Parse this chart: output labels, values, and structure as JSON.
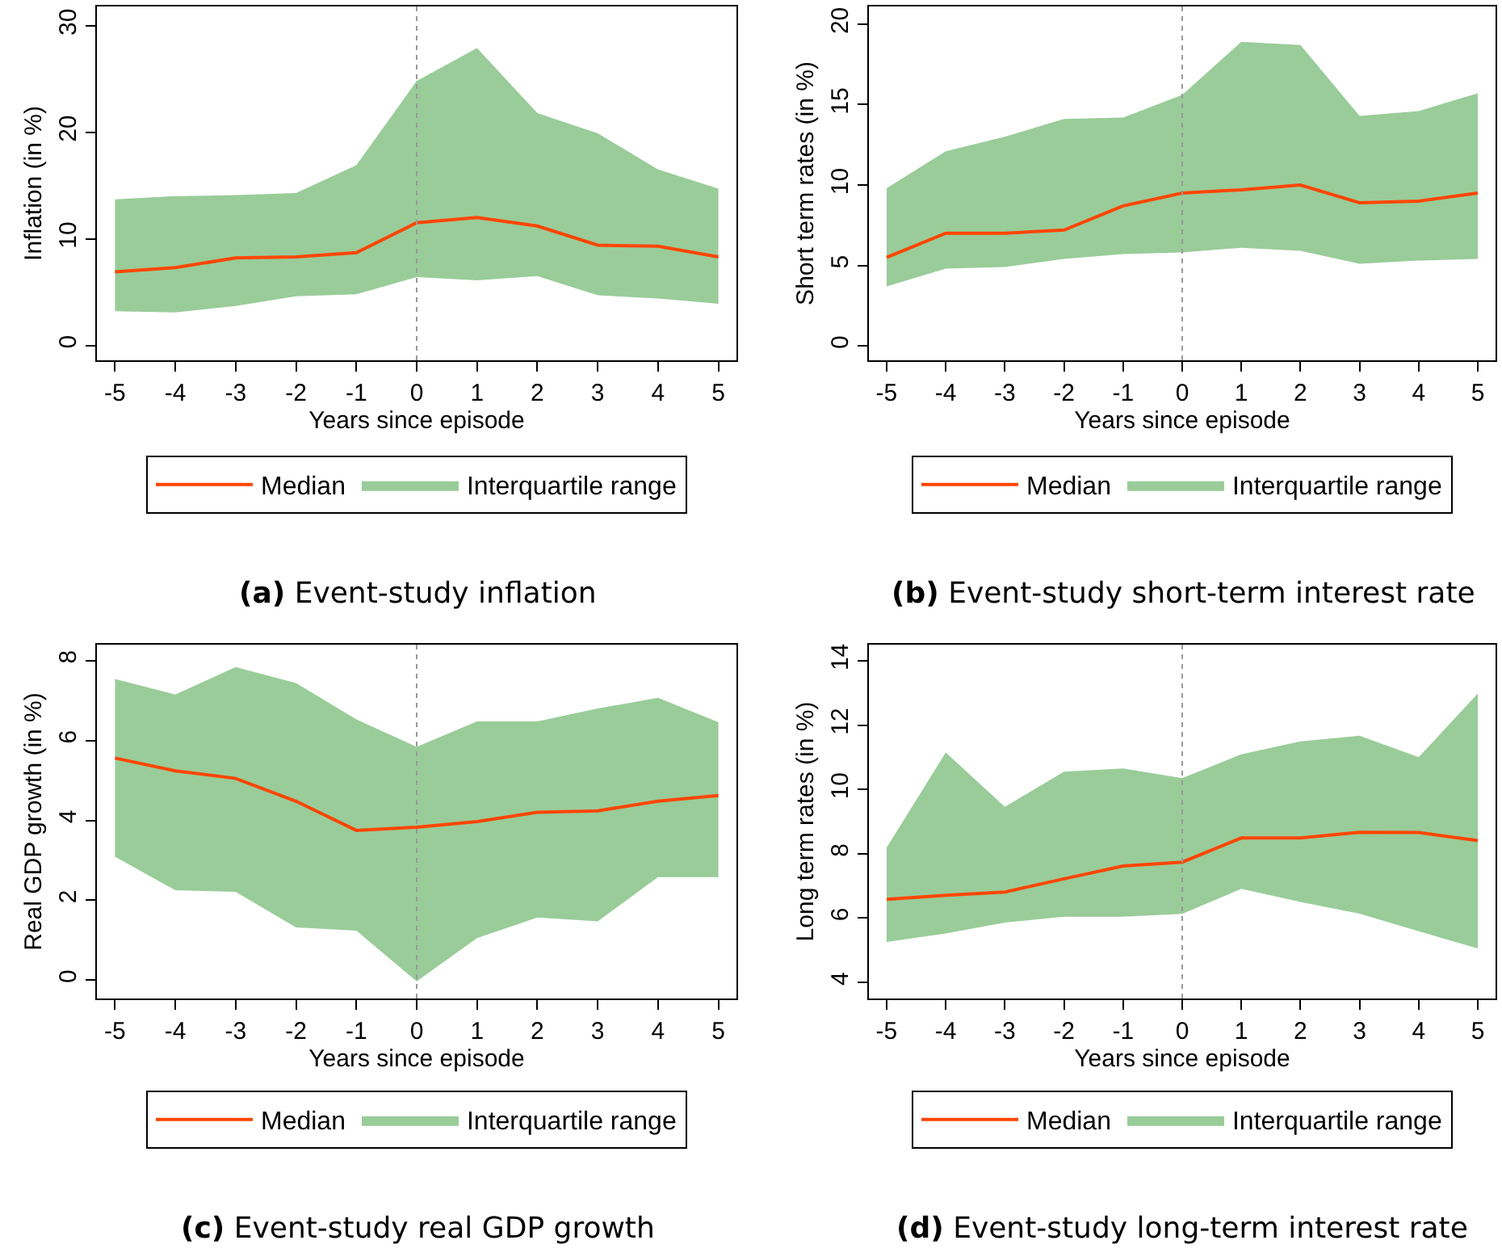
{
  "chart_data": [
    {
      "type": "line",
      "title": "(a) Event-study inflation",
      "xlabel": "Years since episode",
      "ylabel": "Inflation (in %)",
      "x": [
        -5,
        -4,
        -3,
        -2,
        -1,
        0,
        1,
        2,
        3,
        4,
        5
      ],
      "xlim": [
        -5.3,
        5.3
      ],
      "xticks": [
        -5,
        -4,
        -3,
        -2,
        -1,
        0,
        1,
        2,
        3,
        4,
        5
      ],
      "ylim": [
        -1.4,
        31.8
      ],
      "yticks": [
        0,
        10,
        20,
        30
      ],
      "legend": "bottom",
      "ref_lines": [
        {
          "axis": "x",
          "value": 0,
          "color": "#999999",
          "line_style": "dotted"
        }
      ],
      "series": [
        {
          "name": "Median",
          "color": "#ff4500",
          "values": [
            6.9,
            7.3,
            8.2,
            8.3,
            8.7,
            11.5,
            12.0,
            11.2,
            9.4,
            9.3,
            8.3
          ],
          "lower": [
            3.2,
            3.1,
            3.7,
            4.6,
            4.8,
            6.4,
            6.1,
            6.5,
            4.7,
            4.4,
            3.9
          ],
          "upper": [
            13.7,
            14.0,
            14.1,
            14.3,
            16.9,
            24.8,
            27.9,
            21.8,
            19.9,
            16.5,
            14.7
          ]
        },
        {
          "name": "Interquartile range",
          "type": "area",
          "color": "#99cc99",
          "values": [
            null,
            null,
            null,
            null,
            null,
            null,
            null,
            null,
            null,
            null,
            null
          ]
        }
      ]
    },
    {
      "type": "line",
      "title": "(b) Event-study short-term interest rate",
      "xlabel": "Years since episode",
      "ylabel": "Short term rates (in %)",
      "x": [
        -5,
        -4,
        -3,
        -2,
        -1,
        0,
        1,
        2,
        3,
        4,
        5
      ],
      "xlim": [
        -5.3,
        5.3
      ],
      "xticks": [
        -5,
        -4,
        -3,
        -2,
        -1,
        0,
        1,
        2,
        3,
        4,
        5
      ],
      "ylim": [
        -0.9,
        21.1
      ],
      "yticks": [
        0,
        5,
        10,
        15,
        20
      ],
      "legend": "bottom",
      "ref_lines": [
        {
          "axis": "x",
          "value": 0,
          "color": "#999999",
          "line_style": "dotted"
        }
      ],
      "series": [
        {
          "name": "Median",
          "color": "#ff4500",
          "values": [
            5.5,
            7.0,
            7.0,
            7.2,
            8.7,
            9.5,
            9.7,
            10.0,
            8.9,
            9.0,
            9.5
          ],
          "lower": [
            3.7,
            4.8,
            4.9,
            5.4,
            5.7,
            5.8,
            6.1,
            5.9,
            5.1,
            5.3,
            5.4
          ],
          "upper": [
            9.8,
            12.1,
            13.0,
            14.1,
            14.2,
            15.6,
            18.9,
            18.7,
            14.3,
            14.6,
            15.7
          ]
        },
        {
          "name": "Interquartile range",
          "type": "area",
          "color": "#99cc99",
          "values": [
            null,
            null,
            null,
            null,
            null,
            null,
            null,
            null,
            null,
            null,
            null
          ]
        }
      ]
    },
    {
      "type": "line",
      "title": "(c) Event-study real GDP growth",
      "xlabel": "Years since episode",
      "ylabel": "Real GDP growth (in %)",
      "x": [
        -5,
        -4,
        -3,
        -2,
        -1,
        0,
        1,
        2,
        3,
        4,
        5
      ],
      "xlim": [
        -5.3,
        5.3
      ],
      "xticks": [
        -5,
        -4,
        -3,
        -2,
        -1,
        0,
        1,
        2,
        3,
        4,
        5
      ],
      "ylim": [
        -0.46,
        8.4
      ],
      "yticks": [
        0,
        2,
        4,
        6,
        8
      ],
      "legend": "bottom",
      "ref_lines": [
        {
          "axis": "x",
          "value": 0,
          "color": "#999999",
          "line_style": "dotted"
        }
      ],
      "series": [
        {
          "name": "Median",
          "color": "#ff4500",
          "values": [
            5.56,
            5.24,
            5.05,
            4.48,
            3.75,
            3.83,
            3.97,
            4.2,
            4.24,
            4.48,
            4.62
          ],
          "lower": [
            3.09,
            2.25,
            2.21,
            1.32,
            1.24,
            -0.03,
            1.05,
            1.57,
            1.47,
            2.58,
            2.58
          ],
          "upper": [
            7.54,
            7.15,
            7.84,
            7.44,
            6.53,
            5.84,
            6.48,
            6.48,
            6.8,
            7.07,
            6.46
          ]
        },
        {
          "name": "Interquartile range",
          "type": "area",
          "color": "#99cc99",
          "values": [
            null,
            null,
            null,
            null,
            null,
            null,
            null,
            null,
            null,
            null,
            null
          ]
        }
      ]
    },
    {
      "type": "line",
      "title": "(d) Event-study long-term interest rate",
      "xlabel": "Years since episode",
      "ylabel": "Long term rates (in %)",
      "x": [
        -5,
        -4,
        -3,
        -2,
        -1,
        0,
        1,
        2,
        3,
        4,
        5
      ],
      "xlim": [
        -5.3,
        5.3
      ],
      "xticks": [
        -5,
        -4,
        -3,
        -2,
        -1,
        0,
        1,
        2,
        3,
        4,
        5
      ],
      "ylim": [
        3.5,
        14.5
      ],
      "yticks": [
        4,
        6,
        8,
        10,
        12,
        14
      ],
      "legend": "bottom",
      "ref_lines": [
        {
          "axis": "x",
          "value": 0,
          "color": "#999999",
          "line_style": "dotted"
        }
      ],
      "series": [
        {
          "name": "Median",
          "color": "#ff4500",
          "values": [
            6.58,
            6.71,
            6.81,
            7.22,
            7.62,
            7.74,
            8.49,
            8.49,
            8.67,
            8.66,
            8.41
          ],
          "lower": [
            5.26,
            5.52,
            5.86,
            6.04,
            6.04,
            6.13,
            6.91,
            6.5,
            6.14,
            5.59,
            5.06
          ],
          "upper": [
            8.19,
            11.15,
            9.46,
            10.55,
            10.65,
            10.35,
            11.09,
            11.49,
            11.67,
            11.0,
            12.98
          ]
        },
        {
          "name": "Interquartile range",
          "type": "area",
          "color": "#99cc99",
          "values": [
            null,
            null,
            null,
            null,
            null,
            null,
            null,
            null,
            null,
            null,
            null
          ]
        }
      ]
    }
  ]
}
